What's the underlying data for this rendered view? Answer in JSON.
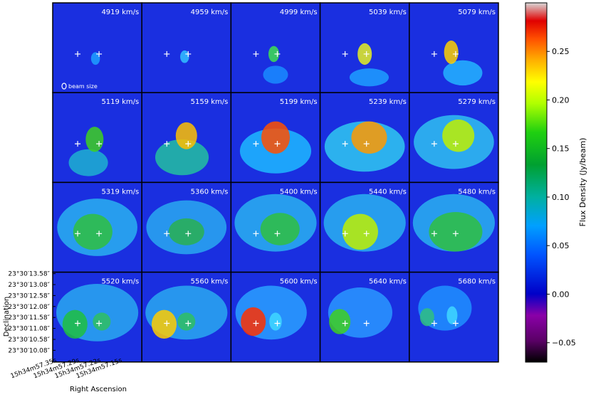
{
  "chart_data": {
    "type": "heatmap",
    "title": "",
    "xlabel": "Right Ascension",
    "ylabel": "Declination",
    "colorbar_label": "Flux Density (Jy/beam)",
    "colorbar_range": [
      -0.07,
      0.3
    ],
    "colorbar_ticks": [
      {
        "value": 0.25,
        "label": "0.25"
      },
      {
        "value": 0.2,
        "label": "0.20"
      },
      {
        "value": 0.15,
        "label": "0.15"
      },
      {
        "value": 0.1,
        "label": "0.10"
      },
      {
        "value": 0.05,
        "label": "0.05"
      },
      {
        "value": 0.0,
        "label": "0.00"
      },
      {
        "value": -0.05,
        "label": "−0.05"
      }
    ],
    "ra_ticks": [
      "15h34m57.35s",
      "15h34m57.29s",
      "15h34m57.22s",
      "15h34m57.15s"
    ],
    "dec_ticks": [
      "23°30′13.58″",
      "23°30′13.08″",
      "23°30′12.58″",
      "23°30′12.08″",
      "23°30′11.58″",
      "23°30′11.08″",
      "23°30′10.58″",
      "23°30′10.08″"
    ],
    "beam_label": "beam size",
    "channels": [
      {
        "velocity": "4919 km/s"
      },
      {
        "velocity": "4959 km/s"
      },
      {
        "velocity": "4999 km/s"
      },
      {
        "velocity": "5039 km/s"
      },
      {
        "velocity": "5079 km/s"
      },
      {
        "velocity": "5119 km/s"
      },
      {
        "velocity": "5159 km/s"
      },
      {
        "velocity": "5199 km/s"
      },
      {
        "velocity": "5239 km/s"
      },
      {
        "velocity": "5279 km/s"
      },
      {
        "velocity": "5319 km/s"
      },
      {
        "velocity": "5360 km/s"
      },
      {
        "velocity": "5400 km/s"
      },
      {
        "velocity": "5440 km/s"
      },
      {
        "velocity": "5480 km/s"
      },
      {
        "velocity": "5520 km/s"
      },
      {
        "velocity": "5560 km/s"
      },
      {
        "velocity": "5600 km/s"
      },
      {
        "velocity": "5640 km/s"
      },
      {
        "velocity": "5680 km/s"
      }
    ]
  }
}
